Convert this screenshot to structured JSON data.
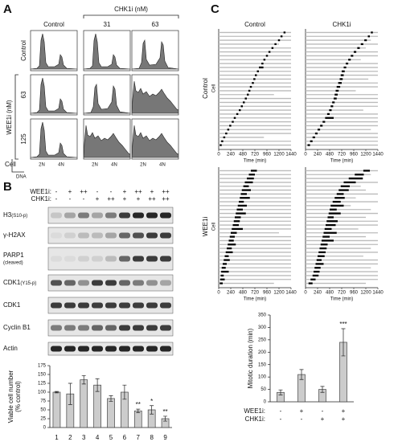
{
  "panel_a": {
    "label": "A",
    "header": "CHK1i (nM)",
    "columns": [
      "Control",
      "31",
      "63"
    ],
    "row_group": "WEE1i (nM)",
    "rows": [
      "Control",
      "63",
      "125"
    ],
    "x_markers": [
      "2N",
      "4N"
    ],
    "y_axis": "Cell",
    "x_axis": "DNA"
  },
  "panel_b": {
    "label": "B",
    "treatments": [
      {
        "label": "WEE1i:",
        "lanes": [
          "-",
          "+",
          "++",
          "-",
          "-",
          "+",
          "++",
          "+",
          "++"
        ]
      },
      {
        "label": "CHK1i:",
        "lanes": [
          "-",
          "-",
          "-",
          "+",
          "++",
          "+",
          "+",
          "++",
          "++"
        ]
      }
    ],
    "blots": [
      {
        "name": "H3",
        "sub": "(S10-p)"
      },
      {
        "name": "γ-H2AX"
      },
      {
        "name": "PARP1",
        "note": "(cleaved)"
      },
      {
        "name": "CDK1",
        "sub": "(Y15-p)"
      },
      {
        "name": "CDK1"
      },
      {
        "name": "Cyclin B1"
      },
      {
        "name": "Actin"
      }
    ]
  },
  "panel_c": {
    "label": "C",
    "column_labels": [
      "Control",
      "CHK1i"
    ],
    "row_labels": [
      "Control",
      "WEE1i"
    ],
    "cell_label": "Cell",
    "xlabel": "Time (min)",
    "xlim": [
      0,
      1440
    ],
    "xticks": [
      0,
      240,
      480,
      720,
      960,
      1200,
      1440
    ],
    "plots": [
      {
        "mitosis_start": [
          1290,
          1230,
          1180,
          1110,
          1050,
          990,
          940,
          890,
          850,
          800,
          760,
          720,
          690,
          660,
          620,
          590,
          560,
          520,
          480,
          440,
          400,
          350,
          300,
          260,
          210,
          170,
          130,
          90,
          50,
          20
        ],
        "mitosis_end": [
          1330,
          1270,
          1220,
          1150,
          1090,
          1030,
          980,
          930,
          890,
          890,
          800,
          760,
          730,
          700,
          660,
          630,
          600,
          560,
          520,
          480,
          440,
          390,
          340,
          300,
          250,
          210,
          170,
          130,
          90,
          60
        ],
        "track_end": [
          1440,
          1440,
          1440,
          1200,
          1440,
          1440,
          1440,
          1440,
          1440,
          1440,
          1440,
          1440,
          1440,
          1440,
          1440,
          1440,
          1100,
          1440,
          1440,
          1440,
          1440,
          1440,
          1440,
          1440,
          1440,
          1440,
          1440,
          900,
          1440,
          1440
        ]
      },
      {
        "mitosis_start": [
          1300,
          1240,
          1170,
          1100,
          1030,
          960,
          900,
          850,
          800,
          760,
          720,
          700,
          680,
          650,
          620,
          600,
          580,
          560,
          530,
          500,
          470,
          430,
          390,
          340,
          290,
          240,
          190,
          140,
          90,
          40
        ],
        "mitosis_end": [
          1340,
          1280,
          1220,
          1150,
          1080,
          1010,
          950,
          900,
          850,
          810,
          780,
          760,
          740,
          720,
          690,
          660,
          640,
          620,
          580,
          550,
          520,
          480,
          560,
          390,
          340,
          290,
          240,
          190,
          140,
          90
        ],
        "track_end": [
          1440,
          1440,
          1300,
          1440,
          1200,
          1440,
          1440,
          1100,
          1440,
          1440,
          1440,
          1440,
          1250,
          1440,
          1440,
          1000,
          1440,
          1440,
          1440,
          1440,
          1150,
          1440,
          1440,
          1440,
          1440,
          1300,
          1440,
          1440,
          1440,
          1440
        ]
      },
      {
        "mitosis_start": [
          640,
          600,
          560,
          520,
          490,
          460,
          440,
          420,
          400,
          380,
          360,
          340,
          320,
          300,
          280,
          260,
          240,
          220,
          200,
          180,
          160,
          140,
          120,
          100,
          80,
          60,
          50,
          40,
          30,
          20
        ],
        "mitosis_end": [
          760,
          720,
          700,
          680,
          600,
          640,
          560,
          620,
          500,
          560,
          480,
          540,
          440,
          420,
          400,
          480,
          360,
          320,
          300,
          340,
          260,
          280,
          200,
          220,
          160,
          140,
          200,
          100,
          120,
          80
        ],
        "track_end": [
          1440,
          1440,
          1440,
          1440,
          1440,
          1440,
          1440,
          1440,
          1440,
          1440,
          1440,
          1440,
          1440,
          1440,
          1440,
          1440,
          1200,
          1440,
          1440,
          1440,
          1440,
          1440,
          1440,
          1440,
          1440,
          1440,
          1440,
          1440,
          1440,
          1100
        ]
      },
      {
        "mitosis_start": [
          1150,
          980,
          860,
          760,
          700,
          660,
          620,
          580,
          540,
          500,
          480,
          460,
          440,
          420,
          400,
          380,
          360,
          340,
          320,
          300,
          280,
          260,
          240,
          220,
          200,
          180,
          160,
          140,
          100,
          60
        ],
        "mitosis_end": [
          1280,
          1160,
          1140,
          1000,
          880,
          860,
          760,
          780,
          700,
          760,
          620,
          700,
          560,
          640,
          600,
          520,
          620,
          480,
          560,
          440,
          420,
          400,
          380,
          320,
          360,
          300,
          280,
          260,
          200,
          140
        ],
        "track_end": [
          1440,
          1300,
          1140,
          1440,
          1100,
          1200,
          1440,
          1000,
          1440,
          900,
          1300,
          1440,
          1200,
          1440,
          1440,
          1050,
          1440,
          1200,
          1440,
          1440,
          1300,
          1440,
          1150,
          1440,
          1440,
          1300,
          1440,
          1440,
          1440,
          1200
        ]
      }
    ]
  },
  "chart_data": [
    {
      "type": "bar",
      "ylabel": [
        "Viable cell number",
        "(% control)"
      ],
      "categories": [
        "1",
        "2",
        "3",
        "4",
        "5",
        "6",
        "7",
        "8",
        "9"
      ],
      "values": [
        100,
        95,
        135,
        120,
        82,
        100,
        47,
        50,
        25
      ],
      "errors": [
        2,
        30,
        12,
        18,
        8,
        20,
        5,
        12,
        7
      ],
      "value_annotations": [
        null,
        null,
        null,
        null,
        null,
        null,
        "**",
        "*",
        "**"
      ],
      "color": "#cccccc",
      "ylim": [
        0,
        175
      ],
      "yticks": [
        0,
        25,
        50,
        75,
        100,
        125,
        150,
        175
      ]
    },
    {
      "type": "bar",
      "ylabel": [
        "Mitotic duration (min)"
      ],
      "treatment_rows": [
        {
          "label": "WEE1i:",
          "values": [
            "-",
            "+",
            "-",
            "+"
          ]
        },
        {
          "label": "CHK1i:",
          "values": [
            "-",
            "-",
            "+",
            "+"
          ]
        }
      ],
      "values": [
        38,
        110,
        50,
        240
      ],
      "errors": [
        10,
        20,
        12,
        55
      ],
      "value_annotations": [
        null,
        null,
        null,
        "***"
      ],
      "color": "#cccccc",
      "ylim": [
        0,
        350
      ],
      "yticks": [
        0,
        50,
        100,
        150,
        200,
        250,
        300,
        350
      ]
    }
  ]
}
